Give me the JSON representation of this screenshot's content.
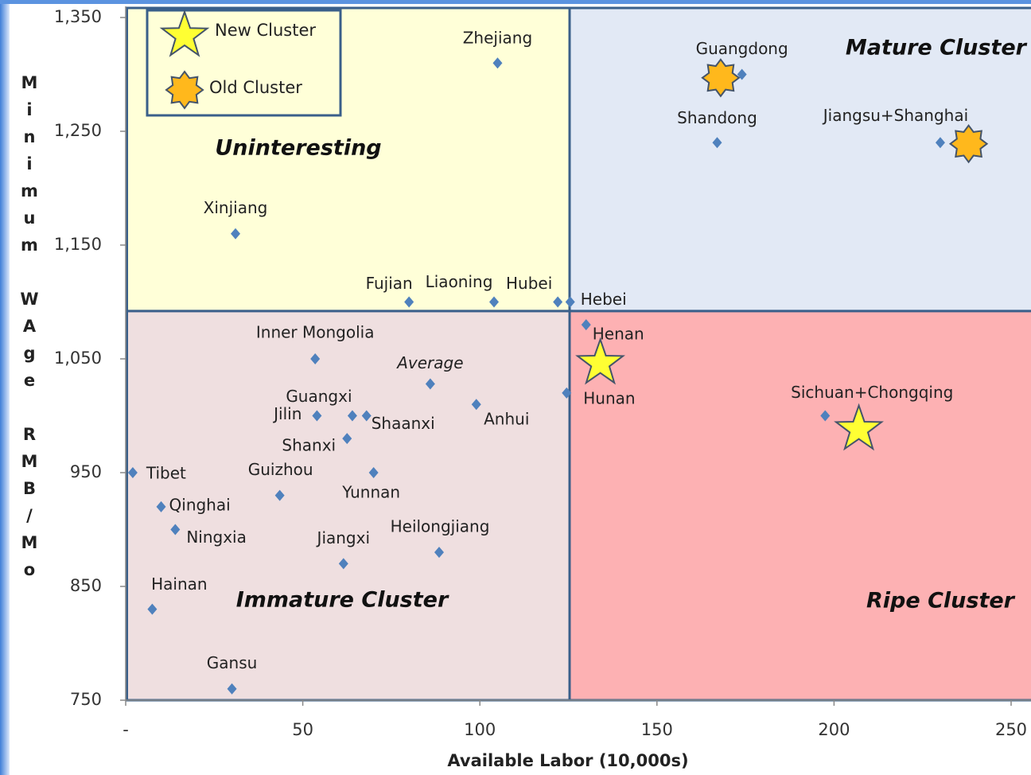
{
  "chart_data": {
    "type": "scatter",
    "xlabel": "Available Labor (10,000s)",
    "ylabel": "Minimum WAge RMB/Mo",
    "xlim": [
      0,
      256
    ],
    "ylim": [
      750,
      1350
    ],
    "xticks": [
      {
        "value": 0,
        "label": "-"
      },
      50,
      100,
      150,
      200,
      250
    ],
    "yticks": [
      {
        "value": 750,
        "label": "750"
      },
      {
        "value": 850,
        "label": "850"
      },
      {
        "value": 950,
        "label": "950"
      },
      {
        "value": 1050,
        "label": "1,050"
      },
      {
        "value": 1150,
        "label": "1,150"
      },
      {
        "value": 1250,
        "label": "1,250"
      },
      {
        "value": 1350,
        "label": "1,350"
      }
    ],
    "color": "#4f81bd",
    "quadrants": [
      {
        "label": "Uninteresting",
        "x": [
          0,
          125
        ],
        "y": [
          1092,
          1350
        ],
        "color": "#ffffd8"
      },
      {
        "label": "Mature Cluster",
        "x": [
          125,
          256
        ],
        "y": [
          1092,
          1350
        ],
        "color": "#e2e9f5"
      },
      {
        "label": "Immature Cluster",
        "x": [
          0,
          125
        ],
        "y": [
          750,
          1092
        ],
        "color": "#efdfe0"
      },
      {
        "label": "Ripe Cluster",
        "x": [
          125,
          256
        ],
        "y": [
          750,
          1092
        ],
        "color": "#fdb1b3"
      }
    ],
    "points": [
      {
        "label": "Zhejiang",
        "x": 105,
        "y": 1310
      },
      {
        "label": "Guangdong",
        "x": 174,
        "y": 1300
      },
      {
        "label": "Shandong",
        "x": 167,
        "y": 1240
      },
      {
        "label": "Jiangsu+Shanghai",
        "x": 230,
        "y": 1240
      },
      {
        "label": "Xinjiang",
        "x": 31,
        "y": 1160
      },
      {
        "label": "Fujian",
        "x": 80,
        "y": 1100
      },
      {
        "label": "Liaoning",
        "x": 104,
        "y": 1100
      },
      {
        "label": "Hubei",
        "x": 122,
        "y": 1100
      },
      {
        "label": "Hebei",
        "x": 125.5,
        "y": 1100
      },
      {
        "label": "Henan",
        "x": 130,
        "y": 1080
      },
      {
        "label": "Hunan",
        "x": 124.5,
        "y": 1020
      },
      {
        "label": "Sichuan+Chongqing",
        "x": 197.5,
        "y": 1000
      },
      {
        "label": "Inner Mongolia",
        "x": 53.5,
        "y": 1050
      },
      {
        "label": "Average",
        "x": 86,
        "y": 1028
      },
      {
        "label": "Anhui",
        "x": 99,
        "y": 1010
      },
      {
        "label": "Guangxi",
        "x": 64,
        "y": 1000
      },
      {
        "label": "Jilin",
        "x": 54,
        "y": 1000
      },
      {
        "label": "Shaanxi",
        "x": 68,
        "y": 1000
      },
      {
        "label": "Shanxi",
        "x": 62.5,
        "y": 980
      },
      {
        "label": "Tibet",
        "x": 2,
        "y": 950
      },
      {
        "label": "Yunnan",
        "x": 70,
        "y": 950
      },
      {
        "label": "Guizhou",
        "x": 43.5,
        "y": 930
      },
      {
        "label": "Qinghai",
        "x": 10,
        "y": 920
      },
      {
        "label": "Ningxia",
        "x": 14,
        "y": 900
      },
      {
        "label": "Heilongjiang",
        "x": 88.5,
        "y": 880
      },
      {
        "label": "Jiangxi",
        "x": 61.5,
        "y": 870
      },
      {
        "label": "Hainan",
        "x": 7.5,
        "y": 830
      },
      {
        "label": "Gansu",
        "x": 30,
        "y": 760
      }
    ],
    "clusters": [
      {
        "name": "New Cluster",
        "color": "#ffff33",
        "points": [
          {
            "x": 134,
            "y": 1046
          },
          {
            "x": 207,
            "y": 988
          }
        ]
      },
      {
        "name": "Old Cluster",
        "color": "#ffb81c",
        "points": [
          {
            "x": 168,
            "y": 1297
          },
          {
            "x": 238,
            "y": 1239
          }
        ]
      }
    ]
  }
}
